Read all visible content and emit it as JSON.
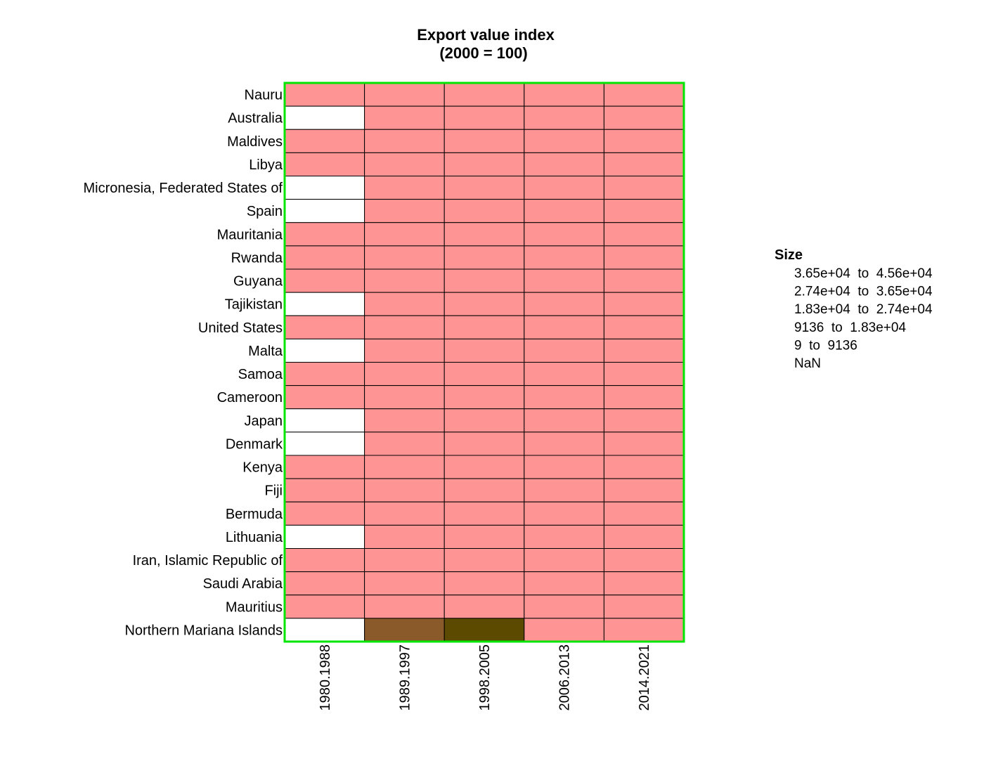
{
  "chart_data": {
    "type": "heatmap",
    "title": "Export value index",
    "subtitle": "(2000 = 100)",
    "columns": [
      "1980.1988",
      "1989.1997",
      "1998.2005",
      "2006.2013",
      "2014.2021"
    ],
    "rows": [
      "Nauru",
      "Australia",
      "Maldives",
      "Libya",
      "Micronesia, Federated States of",
      "Spain",
      "Mauritania",
      "Rwanda",
      "Guyana",
      "Tajikistan",
      "United States",
      "Malta",
      "Samoa",
      "Cameroon",
      "Japan",
      "Denmark",
      "Kenya",
      "Fiji",
      "Bermuda",
      "Lithuania",
      "Iran, Islamic Republic of",
      "Saudi Arabia",
      "Mauritius",
      "Northern Mariana Islands"
    ],
    "cell_classes": [
      [
        4,
        4,
        4,
        4,
        4
      ],
      [
        5,
        4,
        4,
        4,
        4
      ],
      [
        4,
        4,
        4,
        4,
        4
      ],
      [
        4,
        4,
        4,
        4,
        4
      ],
      [
        5,
        4,
        4,
        4,
        4
      ],
      [
        5,
        4,
        4,
        4,
        4
      ],
      [
        4,
        4,
        4,
        4,
        4
      ],
      [
        4,
        4,
        4,
        4,
        4
      ],
      [
        4,
        4,
        4,
        4,
        4
      ],
      [
        5,
        4,
        4,
        4,
        4
      ],
      [
        4,
        4,
        4,
        4,
        4
      ],
      [
        5,
        4,
        4,
        4,
        4
      ],
      [
        4,
        4,
        4,
        4,
        4
      ],
      [
        4,
        4,
        4,
        4,
        4
      ],
      [
        5,
        4,
        4,
        4,
        4
      ],
      [
        5,
        4,
        4,
        4,
        4
      ],
      [
        4,
        4,
        4,
        4,
        4
      ],
      [
        4,
        4,
        4,
        4,
        4
      ],
      [
        4,
        4,
        4,
        4,
        4
      ],
      [
        5,
        4,
        4,
        4,
        4
      ],
      [
        4,
        4,
        4,
        4,
        4
      ],
      [
        4,
        4,
        4,
        4,
        4
      ],
      [
        4,
        4,
        4,
        4,
        4
      ],
      [
        5,
        2,
        1,
        4,
        4
      ]
    ],
    "legend": {
      "title": "Size",
      "placement": "right",
      "items": [
        {
          "label": "3.65e+04  to  4.56e+04",
          "color": "#3b3b00"
        },
        {
          "label": "2.74e+04  to  3.65e+04",
          "color": "#5c4a00"
        },
        {
          "label": "1.83e+04  to  2.74e+04",
          "color": "#8b5a2b"
        },
        {
          "label": "9136  to  1.83e+04",
          "color": "#c97b63"
        },
        {
          "label": "9  to  9136",
          "color": "#ff9494"
        },
        {
          "label": "NaN",
          "color": "#ffffff"
        }
      ]
    },
    "frame_color": "#00e600",
    "cell_border_color": "#000000"
  }
}
